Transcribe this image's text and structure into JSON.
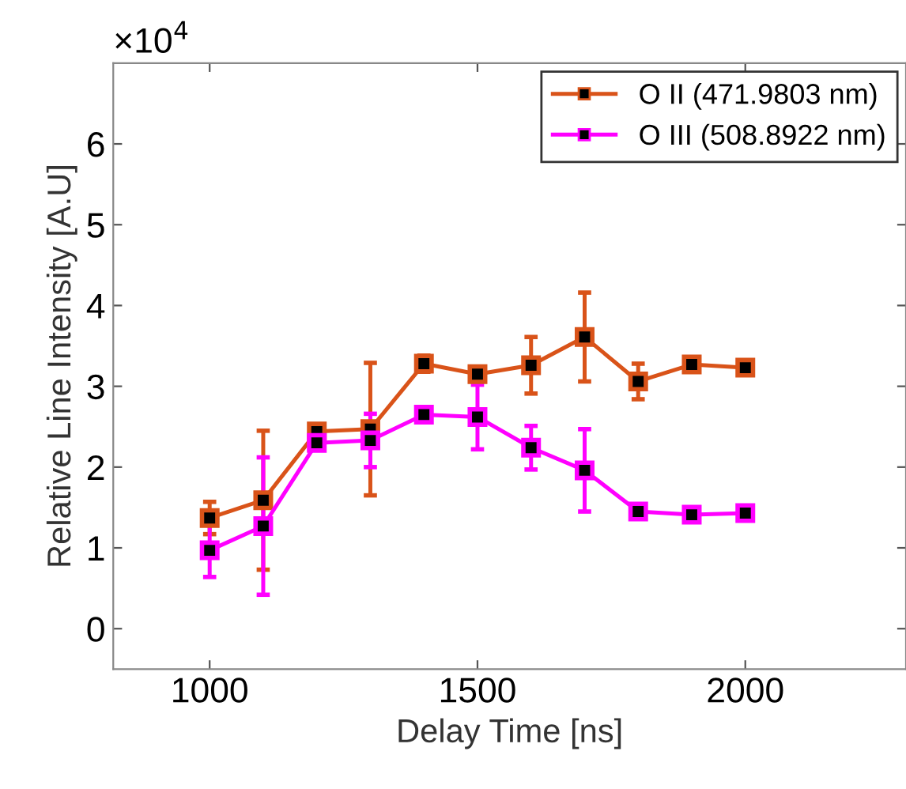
{
  "chart_data": {
    "type": "line",
    "xlabel": "Delay Time [ns]",
    "ylabel": "Relative Line Intensity [A.U]",
    "x": [
      1000,
      1100,
      1200,
      1300,
      1400,
      1500,
      1600,
      1700,
      1800,
      1900,
      2000
    ],
    "series": [
      {
        "name": "O II (471.9803 nm)",
        "color": "#d95319",
        "values": [
          1.37,
          1.59,
          2.44,
          2.47,
          3.28,
          3.15,
          3.26,
          3.61,
          3.06,
          3.27,
          3.23
        ],
        "errors": [
          0.2,
          0.86,
          0.05,
          0.82,
          0.1,
          0.05,
          0.35,
          0.55,
          0.22,
          0.05,
          0.05
        ]
      },
      {
        "name": "O III (508.8922 nm)",
        "color": "#ff00ff",
        "values": [
          0.97,
          1.27,
          2.3,
          2.33,
          2.65,
          2.62,
          2.24,
          1.96,
          1.45,
          1.41,
          1.43
        ],
        "errors": [
          0.33,
          0.85,
          0.05,
          0.33,
          0.05,
          0.4,
          0.27,
          0.51,
          0.05,
          0.05,
          0.05
        ]
      }
    ],
    "xlim": [
      820,
      2300
    ],
    "xticks": [
      1000,
      1500,
      2000
    ],
    "ylim": [
      -0.5,
      7
    ],
    "yticks": [
      0,
      1,
      2,
      3,
      4,
      5,
      6
    ],
    "annotations": [
      "×10$^{4}$"
    ],
    "marker": "square",
    "line_style": "solid",
    "grid": false,
    "legend": "top right"
  }
}
